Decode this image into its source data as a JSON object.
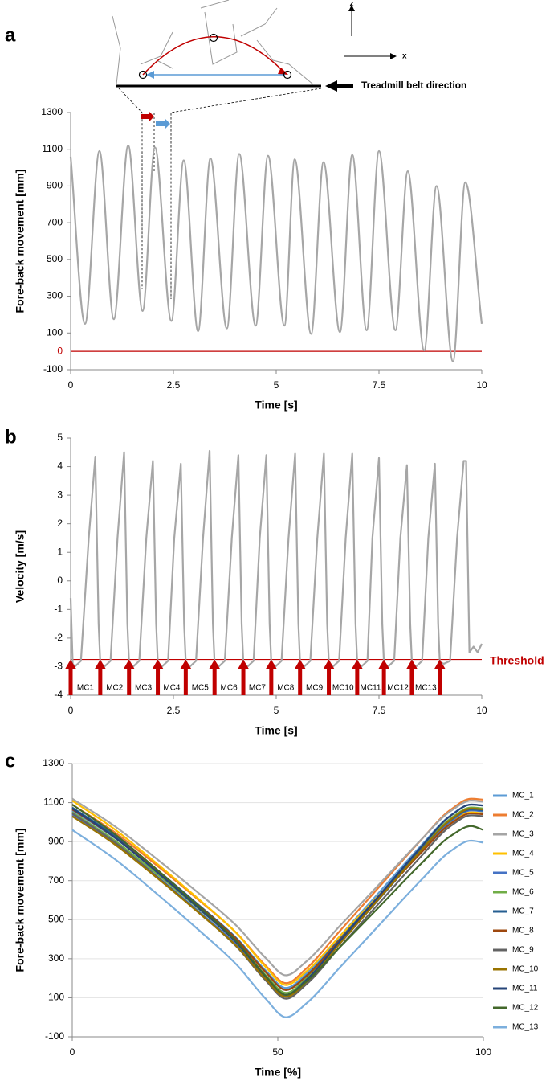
{
  "chart_data": [
    {
      "type": "line",
      "panel_label": "a",
      "annotations": [
        "Treadmill belt direction",
        "z",
        "x"
      ],
      "x_label": "Time [s]",
      "y_label": "Fore-back movement [mm]",
      "xlim": [
        0,
        10
      ],
      "xticks": [
        0,
        2.5,
        5,
        7.5,
        10
      ],
      "ylim": [
        -100,
        1300
      ],
      "yticks": [
        -100,
        100,
        300,
        500,
        700,
        900,
        1100,
        1300
      ],
      "reference_line": {
        "value": 0,
        "color": "#c00000"
      },
      "smooth": true,
      "grid": false,
      "series": [
        {
          "color": "#a6a6a6",
          "x": [
            0,
            0.35,
            0.7,
            1.05,
            1.4,
            1.75,
            2.05,
            2.45,
            2.75,
            3.1,
            3.4,
            3.8,
            4.1,
            4.5,
            4.8,
            5.2,
            5.45,
            5.85,
            6.15,
            6.55,
            6.85,
            7.2,
            7.5,
            7.9,
            8.2,
            8.6,
            8.9,
            9.3,
            9.6,
            10
          ],
          "values": [
            1060,
            150,
            1090,
            175,
            1120,
            220,
            1110,
            165,
            1040,
            110,
            1050,
            125,
            1075,
            140,
            1065,
            140,
            1045,
            95,
            1030,
            105,
            1070,
            115,
            1090,
            115,
            980,
            5,
            900,
            -55,
            920,
            150
          ]
        }
      ]
    },
    {
      "type": "line",
      "panel_label": "b",
      "x_label": "Time [s]",
      "y_label": "Velocity [m/s]",
      "xlim": [
        0,
        10
      ],
      "xticks": [
        0,
        2.5,
        5,
        7.5,
        10
      ],
      "ylim": [
        -4,
        5
      ],
      "yticks": [
        -4,
        -3,
        -2,
        -1,
        0,
        1,
        2,
        3,
        4,
        5
      ],
      "threshold": {
        "value": -2.75,
        "label": "Threshold",
        "color": "#c00000"
      },
      "events": {
        "x": [
          0,
          0.72,
          1.42,
          2.12,
          2.8,
          3.5,
          4.2,
          4.88,
          5.58,
          6.28,
          6.97,
          7.62,
          8.3,
          8.98
        ],
        "labels": [
          "MC1",
          "MC2",
          "MC3",
          "MC4",
          "MC5",
          "MC6",
          "MC7",
          "MC8",
          "MC9",
          "MC10",
          "MC11",
          "MC12",
          "MC13"
        ],
        "color": "#c00000"
      },
      "smooth": false,
      "grid": false,
      "series": [
        {
          "color": "#a6a6a6",
          "x": [
            0,
            0.05,
            0.1,
            0.25,
            0.44,
            0.6,
            0.68,
            0.72,
            0.82,
            0.97,
            1.14,
            1.3,
            1.38,
            1.42,
            1.52,
            1.67,
            1.84,
            2.0,
            2.08,
            2.12,
            2.22,
            2.37,
            2.52,
            2.68,
            2.76,
            2.8,
            2.9,
            3.05,
            3.22,
            3.38,
            3.46,
            3.5,
            3.6,
            3.75,
            3.92,
            4.08,
            4.16,
            4.2,
            4.3,
            4.45,
            4.6,
            4.76,
            4.84,
            4.88,
            4.98,
            5.13,
            5.3,
            5.46,
            5.54,
            5.58,
            5.68,
            5.83,
            6.0,
            6.16,
            6.24,
            6.28,
            6.38,
            6.53,
            6.69,
            6.85,
            6.93,
            6.97,
            7.07,
            7.22,
            7.34,
            7.5,
            7.58,
            7.62,
            7.72,
            7.87,
            8.02,
            8.18,
            8.26,
            8.3,
            8.4,
            8.55,
            8.7,
            8.86,
            8.94,
            8.98,
            9.08,
            9.23,
            9.4,
            9.56,
            9.62,
            9.7,
            9.8,
            9.9,
            10
          ],
          "values": [
            -0.6,
            -2.9,
            -3.0,
            -2.8,
            1.5,
            4.35,
            -1.5,
            -2.85,
            -3.0,
            -2.8,
            1.5,
            4.5,
            -1.5,
            -2.85,
            -3.0,
            -2.8,
            1.5,
            4.2,
            -1.5,
            -2.85,
            -3.0,
            -2.8,
            1.5,
            4.1,
            -1.5,
            -2.85,
            -3.0,
            -2.8,
            1.5,
            4.55,
            -1.5,
            -2.85,
            -3.0,
            -2.8,
            1.5,
            4.4,
            -1.5,
            -2.85,
            -3.0,
            -2.8,
            1.5,
            4.4,
            -1.5,
            -2.85,
            -3.0,
            -2.8,
            1.5,
            4.45,
            -1.5,
            -2.85,
            -3.0,
            -2.8,
            1.5,
            4.45,
            -1.5,
            -2.85,
            -3.0,
            -2.8,
            1.5,
            4.45,
            -1.5,
            -2.85,
            -3.0,
            -2.8,
            1.5,
            4.3,
            -1.5,
            -2.85,
            -3.0,
            -2.8,
            1.5,
            4.05,
            -1.5,
            -2.85,
            -3.0,
            -2.8,
            1.5,
            4.1,
            -1.5,
            -2.85,
            -2.9,
            -2.8,
            1.5,
            4.2,
            4.2,
            -2.5,
            -2.3,
            -2.5,
            -2.2
          ]
        }
      ]
    },
    {
      "type": "line",
      "panel_label": "c",
      "x_label": "Time [%]",
      "y_label": "Fore-back movement [mm]",
      "xlim": [
        0,
        100
      ],
      "xticks": [
        0,
        50,
        100
      ],
      "ylim": [
        -100,
        1300
      ],
      "yticks": [
        -100,
        100,
        300,
        500,
        700,
        900,
        1100,
        1300
      ],
      "grid": true,
      "smooth": true,
      "legend": "right",
      "x": [
        0,
        10,
        20,
        30,
        40,
        47,
        52,
        57,
        65,
        75,
        85,
        92,
        97,
        100
      ],
      "series": [
        {
          "name": "MC_1",
          "color": "#5b9bd5",
          "values": [
            1060,
            924,
            760,
            587,
            405,
            241,
            150,
            225,
            413,
            648,
            883,
            1034,
            1090,
            1085
          ]
        },
        {
          "name": "MC_2",
          "color": "#ed7d31",
          "values": [
            1090,
            953,
            788,
            614,
            431,
            266,
            175,
            251,
            440,
            676,
            912,
            1063,
            1120,
            1115
          ]
        },
        {
          "name": "MC_3",
          "color": "#a5a5a5",
          "values": [
            1120,
            984,
            821,
            649,
            468,
            305,
            215,
            287,
            466,
            689,
            913,
            1056,
            1110,
            1105
          ]
        },
        {
          "name": "MC_4",
          "color": "#ffc000",
          "values": [
            1110,
            968,
            798,
            619,
            430,
            259,
            165,
            236,
            413,
            634,
            855,
            997,
            1050,
            1045
          ]
        },
        {
          "name": "MC_5",
          "color": "#4472c4",
          "values": [
            1040,
            900,
            733,
            556,
            370,
            203,
            110,
            186,
            376,
            614,
            851,
            1003,
            1060,
            1055
          ]
        },
        {
          "name": "MC_6",
          "color": "#70ad47",
          "values": [
            1050,
            911,
            745,
            569,
            384,
            217,
            125,
            201,
            391,
            629,
            866,
            1018,
            1075,
            1070
          ]
        },
        {
          "name": "MC_7",
          "color": "#255e91",
          "values": [
            1075,
            935,
            766,
            589,
            402,
            233,
            140,
            214,
            399,
            630,
            862,
            1010,
            1065,
            1060
          ]
        },
        {
          "name": "MC_8",
          "color": "#9e480e",
          "values": [
            1065,
            926,
            760,
            584,
            399,
            232,
            140,
            212,
            393,
            620,
            846,
            991,
            1045,
            1040
          ]
        },
        {
          "name": "MC_9",
          "color": "#636363",
          "values": [
            1045,
            902,
            731,
            551,
            361,
            190,
            95,
            170,
            358,
            593,
            828,
            979,
            1035,
            1030
          ]
        },
        {
          "name": "MC_10",
          "color": "#997300",
          "values": [
            1030,
            891,
            725,
            549,
            364,
            197,
            105,
            182,
            375,
            616,
            858,
            1012,
            1070,
            1065
          ]
        },
        {
          "name": "MC_11",
          "color": "#264478",
          "values": [
            1070,
            927,
            755,
            573,
            382,
            210,
            115,
            193,
            388,
            632,
            876,
            1032,
            1090,
            1085
          ]
        },
        {
          "name": "MC_12",
          "color": "#43682b",
          "values": [
            1090,
            944,
            768,
            583,
            388,
            212,
            115,
            184,
            357,
            573,
            790,
            928,
            980,
            960
          ]
        },
        {
          "name": "MC_13",
          "color": "#7cafdd",
          "values": [
            960,
            816,
            643,
            461,
            269,
            96,
            0,
            72,
            253,
            480,
            706,
            851,
            905,
            895
          ]
        }
      ]
    }
  ]
}
